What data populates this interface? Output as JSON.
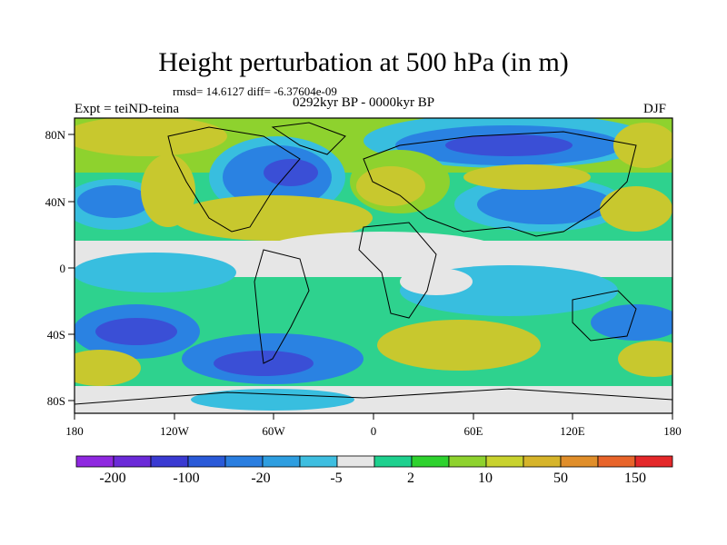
{
  "title": "Height perturbation at 500 hPa (in m)",
  "stats_line": "rmsd= 14.6127 diff= -6.37604e-09",
  "period": "0292kyr BP - 0000kyr BP",
  "experiment": "Expt = teiND-teina",
  "season": "DJF",
  "axes": {
    "x_ticks": [
      "180",
      "120W",
      "60W",
      "0",
      "60E",
      "120E",
      "180"
    ],
    "y_ticks": [
      "80N",
      "40N",
      "0",
      "40S",
      "80S"
    ]
  },
  "colorbar": {
    "labels": [
      "-200",
      "-100",
      "-20",
      "-5",
      "2",
      "10",
      "50",
      "150"
    ],
    "colors": [
      "#8f28e0",
      "#6b2ad8",
      "#3a3ad2",
      "#2a5ad8",
      "#2a7ee0",
      "#2e9ee0",
      "#3ebee0",
      "#e6e6e6",
      "#1ed08e",
      "#2ed22e",
      "#8ed22e",
      "#c8d22e",
      "#d6b42a",
      "#e08e2a",
      "#e8642a",
      "#e4282a"
    ]
  },
  "map_colors": {
    "blue_strong": "#3a4fd6",
    "blue_mid": "#2a82e2",
    "cyan": "#38bedf",
    "grey": "#e6e6e6",
    "green": "#2ed28e",
    "lime": "#8ed22e",
    "yellow": "#c8c82e",
    "orange": "#d6b42a"
  }
}
